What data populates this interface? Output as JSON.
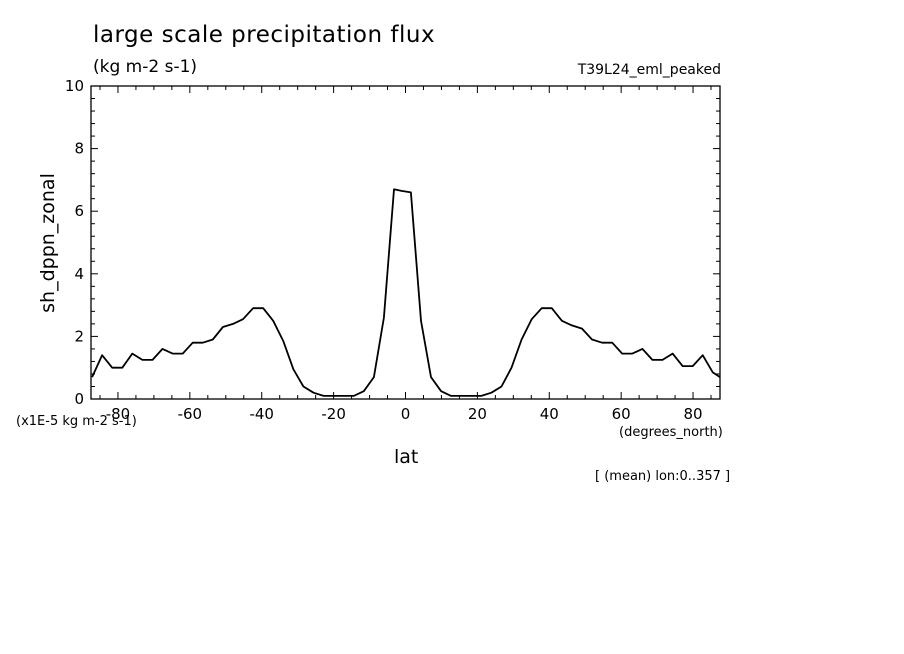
{
  "title": "large scale precipitation flux",
  "units": "(kg m-2 s-1)",
  "model_label": "T39L24_eml_peaked",
  "scale_label": "(x1E-5 kg m-2 s-1)",
  "x_units": "(degrees_north)",
  "footnote": "[ (mean) lon:0..357 ]",
  "chart_data": {
    "type": "line",
    "title": "large scale precipitation flux",
    "xlabel": "lat",
    "ylabel": "sh_dppn_zonal",
    "xlim": [
      -87.5,
      87.5
    ],
    "ylim": [
      0,
      10
    ],
    "x_ticks": [
      -80,
      -60,
      -40,
      -20,
      0,
      20,
      40,
      60,
      80
    ],
    "x_tick_labels": [
      "-80",
      "-60",
      "-40",
      "-20",
      "0",
      "20",
      "40",
      "60",
      "80"
    ],
    "y_ticks": [
      0,
      2,
      4,
      6,
      8,
      10
    ],
    "y_tick_labels": [
      "0",
      "2",
      "4",
      "6",
      "8",
      "10"
    ],
    "grid": false,
    "series": [
      {
        "x": [
          -87.2,
          -84.4,
          -81.6,
          -78.8,
          -76.0,
          -73.2,
          -70.4,
          -67.6,
          -64.8,
          -62.0,
          -59.2,
          -56.4,
          -53.6,
          -50.8,
          -48.0,
          -45.2,
          -42.4,
          -39.6,
          -36.8,
          -34.0,
          -31.2,
          -28.4,
          -25.6,
          -22.8,
          -20.0,
          -17.2,
          -14.4,
          -11.6,
          -8.8,
          -6.0,
          -3.2,
          -1.1,
          1.5,
          4.3,
          7.1,
          9.9,
          12.7,
          15.5,
          18.3,
          21.1,
          23.9,
          26.7,
          29.5,
          32.3,
          35.1,
          37.9,
          40.7,
          43.5,
          46.3,
          49.1,
          51.9,
          54.7,
          57.5,
          60.3,
          63.1,
          65.9,
          68.7,
          71.5,
          74.3,
          77.1,
          79.9,
          82.7,
          85.5,
          87.5
        ],
        "values": [
          0.7,
          1.4,
          1.0,
          1.0,
          1.45,
          1.25,
          1.25,
          1.6,
          1.45,
          1.45,
          1.8,
          1.8,
          1.9,
          2.3,
          2.4,
          2.55,
          2.9,
          2.9,
          2.5,
          1.85,
          0.95,
          0.4,
          0.2,
          0.1,
          0.1,
          0.1,
          0.1,
          0.25,
          0.7,
          2.6,
          6.7,
          6.65,
          6.6,
          2.5,
          0.7,
          0.25,
          0.1,
          0.1,
          0.1,
          0.1,
          0.2,
          0.4,
          1.0,
          1.9,
          2.55,
          2.9,
          2.9,
          2.5,
          2.35,
          2.25,
          1.9,
          1.8,
          1.8,
          1.45,
          1.45,
          1.6,
          1.25,
          1.25,
          1.45,
          1.05,
          1.05,
          1.4,
          0.85,
          0.7
        ]
      }
    ]
  }
}
